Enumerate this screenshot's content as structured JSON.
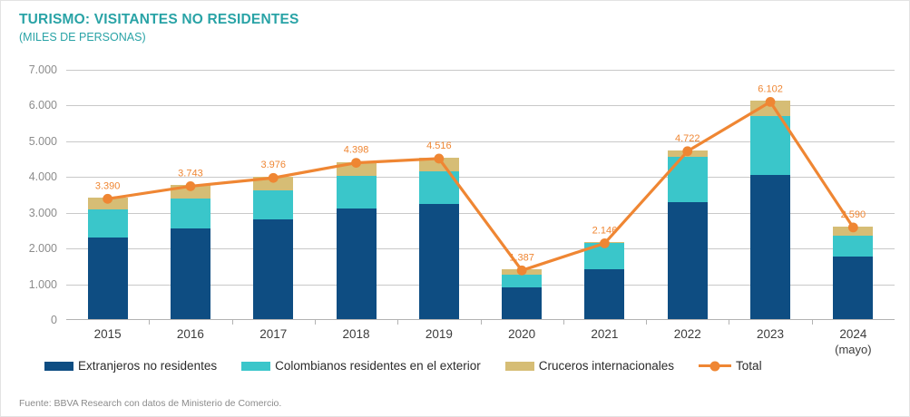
{
  "header": {
    "title": "TURISMO: VISITANTES NO RESIDENTES",
    "subtitle": "(MILES DE PERSONAS)"
  },
  "colors": {
    "title_teal": "#29a3a6",
    "extranjeros_navy": "#0e4d82",
    "colombianos_cyan": "#3ac6ca",
    "cruceros_tan": "#d6bd75",
    "total_orange": "#ef8633",
    "axis_text_gray": "#8c8c8c",
    "gridline_gray": "#c9c9c9"
  },
  "chart_data": {
    "type": "bar",
    "stacked": true,
    "grid": true,
    "legend_position": "bottom",
    "title": "TURISMO: VISITANTES NO RESIDENTES",
    "subtitle": "(MILES DE PERSONAS)",
    "ylim": [
      0,
      7000
    ],
    "ytick_step": 1000,
    "ytick_labels": [
      "0",
      "1.000",
      "2.000",
      "3.000",
      "4.000",
      "5.000",
      "6.000",
      "7.000"
    ],
    "categories": [
      "2015",
      "2016",
      "2017",
      "2018",
      "2019",
      "2020",
      "2021",
      "2022",
      "2023",
      "2024"
    ],
    "category_sublabels": [
      "",
      "",
      "",
      "",
      "",
      "",
      "",
      "",
      "",
      "(mayo)"
    ],
    "series": [
      {
        "name": "Extranjeros no residentes",
        "type": "bar",
        "color": "#0e4d82",
        "values": [
          2280,
          2530,
          2780,
          3100,
          3210,
          880,
          1390,
          3280,
          4030,
          1760
        ]
      },
      {
        "name": "Colombianos residentes en el exterior",
        "type": "bar",
        "color": "#3ac6ca",
        "values": [
          790,
          833,
          816,
          898,
          916,
          357,
          736,
          1250,
          1640,
          580
        ]
      },
      {
        "name": "Cruceros internacionales",
        "type": "bar",
        "color": "#d6bd75",
        "values": [
          320,
          380,
          380,
          400,
          390,
          150,
          20,
          192,
          432,
          250
        ]
      },
      {
        "name": "Total",
        "type": "line",
        "color": "#ef8633",
        "values": [
          3390,
          3743,
          3976,
          4398,
          4516,
          1387,
          2146,
          4722,
          6102,
          2590
        ],
        "labels": [
          "3.390",
          "3.743",
          "3.976",
          "4.398",
          "4.516",
          "1.387",
          "2.146",
          "4.722",
          "6.102",
          "2.590"
        ]
      }
    ]
  },
  "footer": {
    "source": "Fuente: BBVA Research con datos de Ministerio de Comercio."
  }
}
